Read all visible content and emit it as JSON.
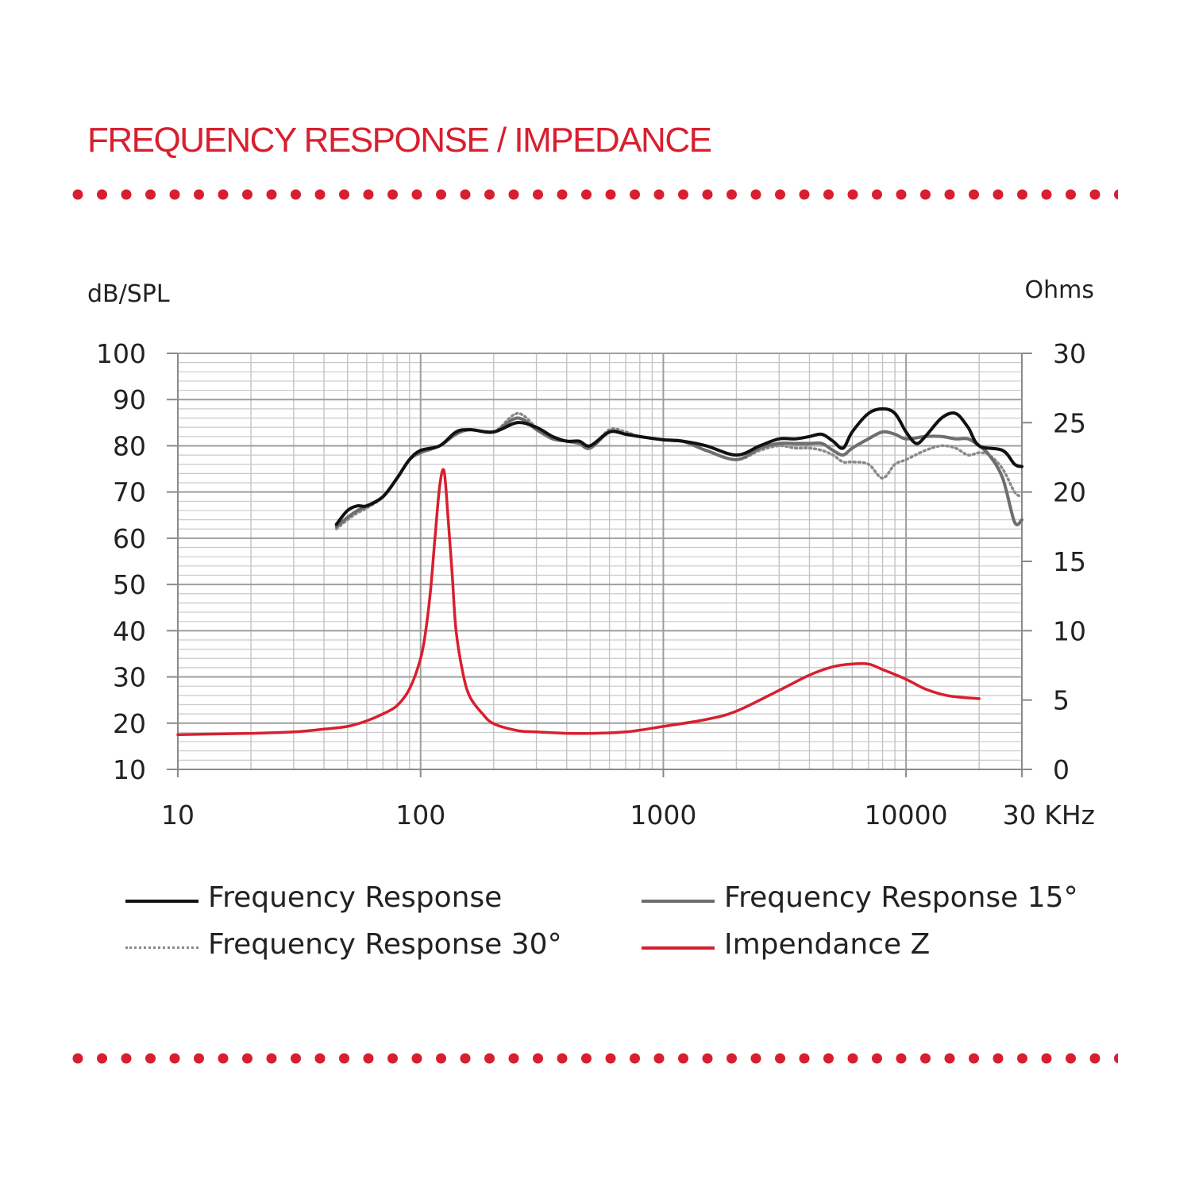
{
  "title": "FREQUENCY RESPONSE / IMPEDANCE",
  "colors": {
    "accent": "#d81f2f",
    "fr": "#111111",
    "fr15": "#6e6e6e",
    "fr30": "#8a8a8a",
    "impedance": "#d81f2f",
    "grid": "#b5b5b5"
  },
  "chart_data": {
    "type": "line",
    "title": "FREQUENCY RESPONSE / IMPEDANCE",
    "xscale": "log",
    "xlim": [
      10,
      30000
    ],
    "x_ticks": [
      {
        "value": 10,
        "label": "10"
      },
      {
        "value": 100,
        "label": "100"
      },
      {
        "value": 1000,
        "label": "1000"
      },
      {
        "value": 10000,
        "label": "10000"
      },
      {
        "value": 30000,
        "label": "30 KHz"
      }
    ],
    "left_axis": {
      "label": "dB/SPL",
      "ylim": [
        10,
        100
      ],
      "ticks": [
        "10",
        "20",
        "30",
        "40",
        "50",
        "60",
        "70",
        "80",
        "90",
        "100"
      ]
    },
    "right_axis": {
      "label": "Ohms",
      "ylim": [
        0,
        30
      ],
      "ticks": [
        "0",
        "5",
        "10",
        "15",
        "20",
        "25",
        "30"
      ]
    },
    "series": [
      {
        "name": "Frequency Response",
        "axis": "left",
        "style": "solid",
        "x": [
          45,
          50,
          55,
          60,
          70,
          80,
          90,
          100,
          120,
          140,
          160,
          200,
          250,
          300,
          350,
          400,
          450,
          500,
          600,
          700,
          800,
          1000,
          1200,
          1500,
          2000,
          2500,
          3000,
          3500,
          4000,
          4500,
          5000,
          5500,
          6000,
          7000,
          8000,
          9000,
          10000,
          11000,
          12000,
          14000,
          16000,
          18000,
          20000,
          25000,
          28000,
          30000
        ],
        "y": [
          63,
          66,
          67,
          67,
          69,
          73,
          77,
          79,
          80,
          83,
          83.5,
          83,
          85,
          84,
          82,
          81,
          81,
          80,
          83,
          82.5,
          82,
          81.3,
          81,
          80,
          78,
          80,
          81.5,
          81.5,
          82,
          82.5,
          81,
          79.5,
          83,
          87,
          88,
          87,
          83,
          80.5,
          82,
          86,
          87,
          84,
          80,
          79,
          76,
          75.5
        ]
      },
      {
        "name": "Frequency Response 15°",
        "axis": "left",
        "style": "solid",
        "x": [
          45,
          50,
          55,
          60,
          70,
          80,
          90,
          100,
          120,
          140,
          160,
          200,
          250,
          300,
          350,
          400,
          450,
          500,
          600,
          700,
          800,
          1000,
          1200,
          1500,
          2000,
          2500,
          3000,
          3500,
          4000,
          4500,
          5000,
          5500,
          6000,
          7000,
          8000,
          9000,
          10000,
          12000,
          14000,
          16000,
          18000,
          20000,
          22000,
          25000,
          28000,
          30000
        ],
        "y": [
          62.5,
          64.5,
          66,
          67,
          69,
          73,
          77,
          78.5,
          80,
          82.5,
          83.5,
          83,
          86,
          83.5,
          81.5,
          81,
          80.5,
          79.5,
          83,
          82.5,
          82,
          81.3,
          81,
          79,
          77,
          79.5,
          80.5,
          80.5,
          80.5,
          80.5,
          79,
          78,
          79.5,
          81.5,
          83,
          82.5,
          81.5,
          82,
          82,
          81.5,
          81.5,
          80,
          78,
          73,
          63.5,
          64
        ]
      },
      {
        "name": "Frequency Response 30°",
        "axis": "left",
        "style": "dotted",
        "x": [
          45,
          50,
          55,
          60,
          70,
          80,
          90,
          100,
          120,
          140,
          160,
          200,
          250,
          300,
          350,
          400,
          450,
          500,
          600,
          700,
          800,
          1000,
          1200,
          1500,
          2000,
          2500,
          3000,
          3500,
          4000,
          4500,
          5000,
          5500,
          6000,
          7000,
          8000,
          9000,
          10000,
          12000,
          14000,
          16000,
          18000,
          20000,
          22000,
          25000,
          28000,
          30000
        ],
        "y": [
          62,
          64,
          65.5,
          66.5,
          69,
          73,
          77,
          78.5,
          80,
          82.5,
          83.5,
          83,
          87,
          84,
          82,
          81,
          80.5,
          79.5,
          83.5,
          83,
          82,
          81.3,
          81,
          79,
          77,
          79,
          80,
          79.5,
          79.5,
          79,
          78,
          76.5,
          76.5,
          76,
          73,
          76,
          77,
          79,
          80,
          79.5,
          78,
          78.5,
          78,
          75,
          70,
          69
        ]
      },
      {
        "name": "Impendance Z",
        "axis": "right",
        "style": "solid",
        "x": [
          10,
          20,
          30,
          40,
          50,
          60,
          70,
          80,
          90,
          100,
          105,
          110,
          115,
          120,
          125,
          130,
          135,
          140,
          150,
          160,
          180,
          200,
          250,
          300,
          400,
          500,
          700,
          1000,
          1500,
          2000,
          3000,
          4000,
          5000,
          6000,
          7000,
          8000,
          10000,
          12000,
          15000,
          20000
        ],
        "y": [
          2.5,
          2.6,
          2.7,
          2.9,
          3.1,
          3.5,
          4,
          4.6,
          5.8,
          8,
          10,
          13,
          17,
          20.5,
          21.5,
          18,
          14,
          10,
          6.8,
          5.2,
          4,
          3.3,
          2.8,
          2.7,
          2.6,
          2.6,
          2.7,
          3.1,
          3.6,
          4.2,
          5.7,
          6.8,
          7.4,
          7.6,
          7.6,
          7.2,
          6.5,
          5.8,
          5.3,
          5.1
        ]
      }
    ],
    "legend": [
      {
        "name": "Frequency Response",
        "style": "solid",
        "color": "#111111"
      },
      {
        "name": "Frequency Response 15°",
        "style": "solid",
        "color": "#6e6e6e"
      },
      {
        "name": "Frequency Response 30°",
        "style": "dotted",
        "color": "#8a8a8a"
      },
      {
        "name": "Impendance Z",
        "style": "solid",
        "color": "#d81f2f"
      }
    ]
  }
}
